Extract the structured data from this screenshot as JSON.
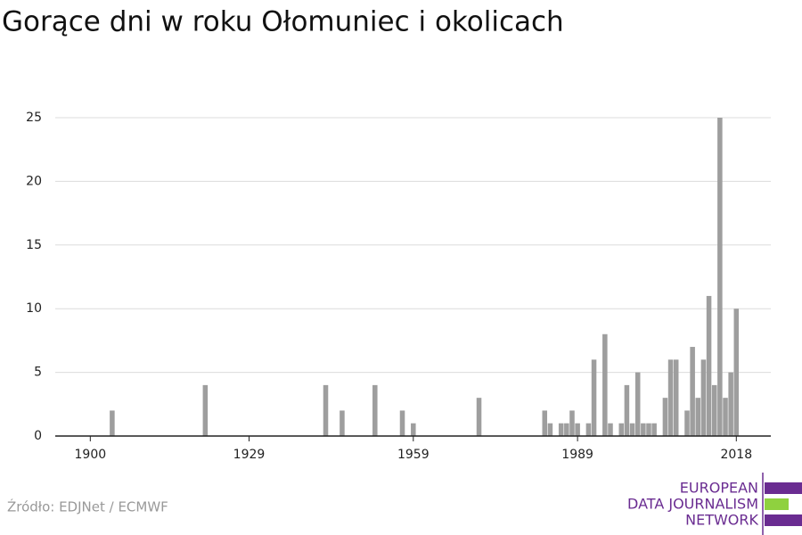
{
  "chart_data": {
    "type": "bar",
    "title": "Gorące dni w roku Ołomuniec i okolicach",
    "source": "Źródło: EDJNet / ECMWF",
    "x": [
      1904,
      1921,
      1943,
      1946,
      1952,
      1957,
      1959,
      1971,
      1983,
      1984,
      1986,
      1987,
      1988,
      1989,
      1991,
      1992,
      1994,
      1995,
      1997,
      1998,
      1999,
      2000,
      2001,
      2002,
      2003,
      2005,
      2006,
      2007,
      2009,
      2010,
      2011,
      2012,
      2013,
      2014,
      2015,
      2016,
      2017,
      2018
    ],
    "values": [
      2,
      4,
      4,
      2,
      4,
      2,
      1,
      3,
      2,
      1,
      1,
      1,
      2,
      1,
      1,
      6,
      8,
      1,
      1,
      4,
      1,
      5,
      1,
      1,
      1,
      3,
      6,
      6,
      2,
      7,
      3,
      6,
      11,
      4,
      25,
      3,
      5,
      10
    ],
    "color": "#9e9e9e",
    "xlim": [
      1893.6,
      2024.3
    ],
    "xticks": [
      1900,
      1929,
      1959,
      1989,
      2018
    ],
    "ylim": [
      0,
      25
    ],
    "yticks": [
      0,
      5,
      10,
      15,
      20,
      25
    ],
    "grid": true
  },
  "logo": [
    "EUROPEAN",
    "DATA JOURNALISM",
    "NETWORK"
  ]
}
